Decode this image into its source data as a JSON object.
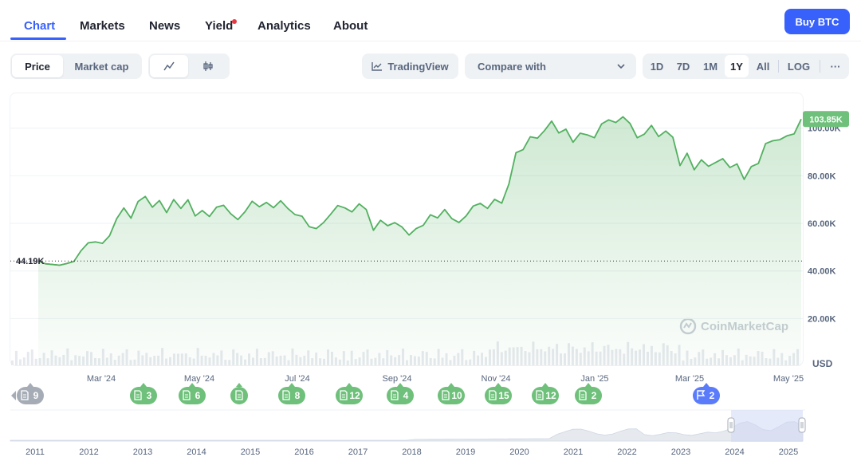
{
  "nav": {
    "tabs": [
      {
        "label": "Chart",
        "active": true
      },
      {
        "label": "Markets",
        "active": false
      },
      {
        "label": "News",
        "active": false
      },
      {
        "label": "Yield",
        "active": false
      },
      {
        "label": "Analytics",
        "active": false
      },
      {
        "label": "About",
        "active": false
      }
    ],
    "buy_label": "Buy BTC"
  },
  "toolbar": {
    "metric_options": [
      "Price",
      "Market cap"
    ],
    "metric_selected": "Price",
    "chart_style_icons": [
      "line-chart-icon",
      "candlestick-icon"
    ],
    "tradingview_label": "TradingView",
    "compare_label": "Compare with",
    "ranges": [
      "1D",
      "7D",
      "1M",
      "1Y",
      "All",
      "LOG"
    ],
    "range_selected": "1Y",
    "more_label": "···"
  },
  "colors": {
    "accent": "#3861fb",
    "up": "#16c784",
    "line": "#52b060",
    "down": "#ea3943",
    "event_badge": "#6ec07a"
  },
  "chart_data": {
    "type": "area",
    "currency_label": "USD",
    "ylim": [
      0,
      115000
    ],
    "y_ticks": [
      20000,
      40000,
      60000,
      80000,
      100000
    ],
    "y_tick_labels": [
      "20.00K",
      "40.00K",
      "60.00K",
      "80.00K",
      "100.00K"
    ],
    "x_tick_labels": [
      "Mar '24",
      "May '24",
      "Jul '24",
      "Sep '24",
      "Nov '24",
      "Jan '25",
      "Mar '25",
      "May '25"
    ],
    "current_price_label": "103.85K",
    "start_price_label": "44.19K",
    "start_price": 44190,
    "series": [
      {
        "values": [
          44190,
          43000,
          42700,
          42400,
          43100,
          44000,
          48500,
          51800,
          52200,
          51600,
          54800,
          62000,
          66500,
          62200,
          69200,
          71300,
          66800,
          69600,
          64500,
          70000,
          66300,
          69900,
          63100,
          65400,
          62900,
          66800,
          67600,
          64000,
          61600,
          64900,
          69300,
          67000,
          68800,
          66600,
          69500,
          66300,
          63700,
          63000,
          58600,
          57800,
          60300,
          63800,
          67500,
          66500,
          64800,
          68200,
          65800,
          57100,
          61300,
          59000,
          60300,
          58500,
          55100,
          57800,
          59200,
          63600,
          62300,
          65800,
          62000,
          60400,
          63100,
          67300,
          68400,
          66300,
          70100,
          68500,
          76500,
          89700,
          91000,
          96400,
          95800,
          99000,
          103000,
          98000,
          99600,
          94100,
          97900,
          97200,
          96000,
          101800,
          103500,
          102400,
          104800,
          102000,
          96000,
          97500,
          101200,
          96500,
          98800,
          96200,
          84300,
          89500,
          82500,
          86700,
          84000,
          85600,
          87200,
          83500,
          85000,
          78500,
          83900,
          85200,
          93500,
          94700,
          95200,
          96800,
          97600,
          103850
        ]
      }
    ],
    "events": [
      {
        "count": "9"
      },
      {
        "count": "3"
      },
      {
        "count": "6"
      },
      {
        "count": ""
      },
      {
        "count": "8"
      },
      {
        "count": "12"
      },
      {
        "count": "4"
      },
      {
        "count": "10"
      },
      {
        "count": "15"
      },
      {
        "count": "12"
      },
      {
        "count": "2"
      },
      {
        "count": "2",
        "kind": "flag"
      }
    ],
    "navigator_labels": [
      "2011",
      "2012",
      "2013",
      "2014",
      "2015",
      "2016",
      "2017",
      "2018",
      "2019",
      "2020",
      "2021",
      "2022",
      "2023",
      "2024",
      "2025"
    ],
    "watermark": "CoinMarketCap"
  }
}
